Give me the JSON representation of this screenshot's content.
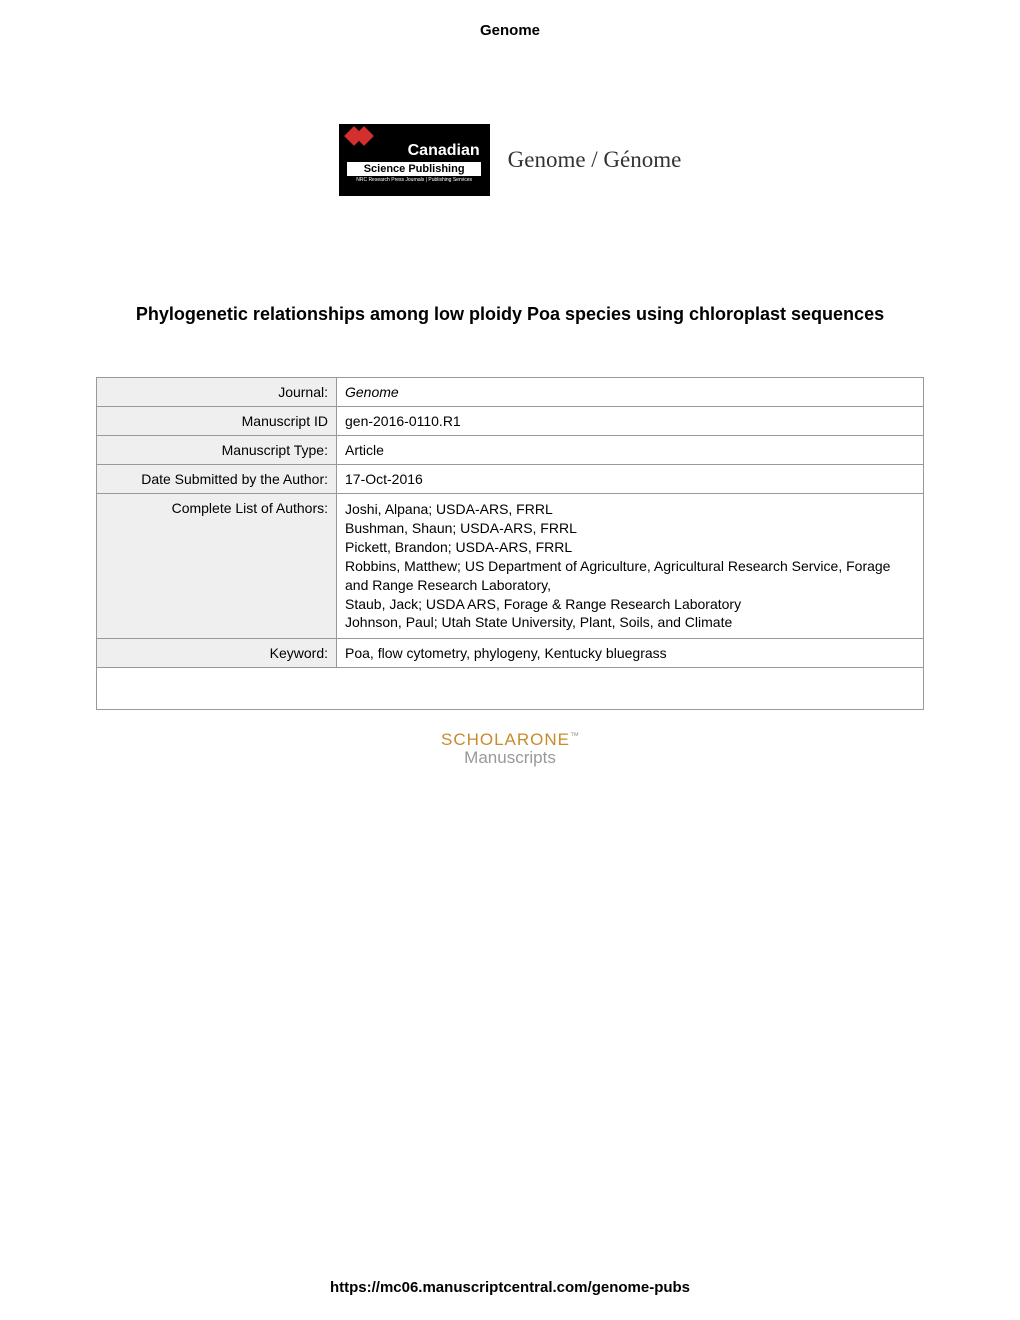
{
  "header": {
    "title": "Genome"
  },
  "logo": {
    "publisher_main": "Canadian",
    "publisher_sub": "Science Publishing",
    "publisher_tagline": "NRC Research Press Journals | Publishing Services",
    "journal_name": "Genome / Génome"
  },
  "paper": {
    "title": "Phylogenetic relationships among low ploidy Poa species using chloroplast sequences"
  },
  "metadata": {
    "rows": [
      {
        "label": "Journal:",
        "value": "Genome",
        "italic": true
      },
      {
        "label": "Manuscript ID",
        "value": "gen-2016-0110.R1",
        "italic": false
      },
      {
        "label": "Manuscript Type:",
        "value": "Article",
        "italic": false
      },
      {
        "label": "Date Submitted by the Author:",
        "value": "17-Oct-2016",
        "italic": false
      },
      {
        "label": "Complete List of Authors:",
        "value": "Joshi, Alpana; USDA-ARS, FRRL\nBushman, Shaun; USDA-ARS, FRRL\nPickett, Brandon; USDA-ARS, FRRL\nRobbins, Matthew; US Department of Agriculture, Agricultural Research Service, Forage and Range Research Laboratory,\nStaub, Jack; USDA ARS, Forage & Range Research Laboratory\nJohnson, Paul; Utah State University, Plant, Soils, and Climate",
        "italic": false
      },
      {
        "label": "Keyword:",
        "value": "Poa, flow cytometry, phylogeny, Kentucky bluegrass",
        "italic": false
      }
    ]
  },
  "scholarone": {
    "main": "SCHOLARONE",
    "tm": "™",
    "sub": "Manuscripts"
  },
  "footer": {
    "url": "https://mc06.manuscriptcentral.com/genome-pubs"
  },
  "colors": {
    "publisher_bg": "#000000",
    "publisher_diamond": "#d32f2f",
    "table_label_bg": "#efefef",
    "table_border": "#999999",
    "scholarone_color": "#c88b2e",
    "scholarone_sub_color": "#999999",
    "text_color": "#000000",
    "page_bg": "#ffffff"
  },
  "typography": {
    "body_font": "Verdana, Geneva, sans-serif",
    "header_fontsize": 15,
    "title_fontsize": 18,
    "table_fontsize": 14,
    "journal_fontsize": 23
  }
}
